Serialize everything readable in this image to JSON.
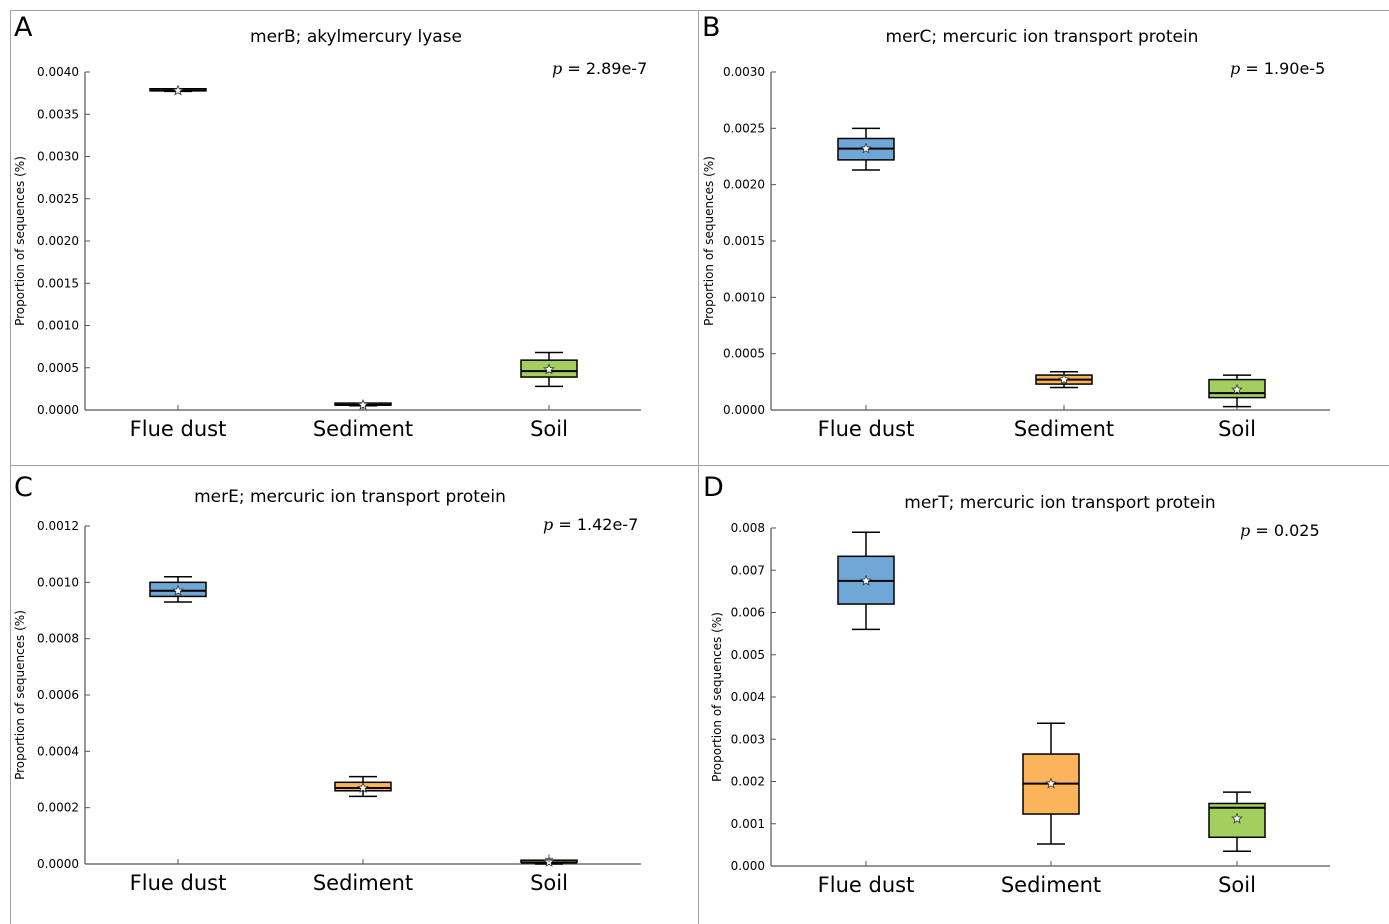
{
  "colors": {
    "flue_dust": "#6fa8d6",
    "sediment": "#fbb45c",
    "soil": "#a3cf5e",
    "axis": "#555555",
    "frame": "#a0a0a0"
  },
  "chart_data": [
    {
      "panel_letter": "A",
      "type": "box",
      "title": "merB; akylmercury lyase",
      "p_label": "p",
      "p_value": "= 2.89e-7",
      "ylabel": "Proportion of sequences (%)",
      "ylim": [
        0,
        0.004
      ],
      "yticks": [
        "0.0000",
        "0.0005",
        "0.0010",
        "0.0015",
        "0.0020",
        "0.0025",
        "0.0030",
        "0.0035",
        "0.0040"
      ],
      "categories": [
        "Flue dust",
        "Sediment",
        "Soil"
      ],
      "boxes": [
        {
          "whisker_low": 0.00377,
          "q1": 0.00377,
          "median": 0.00378,
          "q3": 0.00379,
          "whisker_high": 0.00379,
          "mean": 0.00378
        },
        {
          "whisker_low": 5e-05,
          "q1": 5e-05,
          "median": 6e-05,
          "q3": 7e-05,
          "whisker_high": 7e-05,
          "mean": 6e-05
        },
        {
          "whisker_low": 0.00028,
          "q1": 0.00039,
          "median": 0.00046,
          "q3": 0.00059,
          "whisker_high": 0.00068,
          "mean": 0.00048
        }
      ]
    },
    {
      "panel_letter": "B",
      "type": "box",
      "title": "merC; mercuric ion transport protein",
      "p_label": "p",
      "p_value": "= 1.90e-5",
      "ylabel": "Proportion of sequences (%)",
      "ylim": [
        0,
        0.003
      ],
      "yticks": [
        "0.0000",
        "0.0005",
        "0.0010",
        "0.0015",
        "0.0020",
        "0.0025",
        "0.0030"
      ],
      "categories": [
        "Flue dust",
        "Sediment",
        "Soil"
      ],
      "boxes": [
        {
          "whisker_low": 0.00213,
          "q1": 0.00222,
          "median": 0.00232,
          "q3": 0.00241,
          "whisker_high": 0.0025,
          "mean": 0.00232
        },
        {
          "whisker_low": 0.0002,
          "q1": 0.00023,
          "median": 0.00027,
          "q3": 0.00031,
          "whisker_high": 0.00034,
          "mean": 0.00027
        },
        {
          "whisker_low": 3e-05,
          "q1": 0.00011,
          "median": 0.00015,
          "q3": 0.00027,
          "whisker_high": 0.00031,
          "mean": 0.00018
        }
      ]
    },
    {
      "panel_letter": "C",
      "type": "box",
      "title": "merE; mercuric ion transport protein",
      "p_label": "p",
      "p_value": "= 1.42e-7",
      "ylabel": "Proportion of sequences (%)",
      "ylim": [
        0,
        0.0012
      ],
      "yticks": [
        "0.0000",
        "0.0002",
        "0.0004",
        "0.0006",
        "0.0008",
        "0.0010",
        "0.0012"
      ],
      "categories": [
        "Flue dust",
        "Sediment",
        "Soil"
      ],
      "boxes": [
        {
          "whisker_low": 0.00093,
          "q1": 0.00095,
          "median": 0.00097,
          "q3": 0.001,
          "whisker_high": 0.00102,
          "mean": 0.00097
        },
        {
          "whisker_low": 0.00024,
          "q1": 0.00026,
          "median": 0.00027,
          "q3": 0.00029,
          "whisker_high": 0.00031,
          "mean": 0.00027
        },
        {
          "whisker_low": 0.0,
          "q1": 3e-06,
          "median": 5e-06,
          "q3": 1e-05,
          "whisker_high": 1e-05,
          "mean": 7e-06,
          "outlier": 2e-05
        }
      ]
    },
    {
      "panel_letter": "D",
      "type": "box",
      "title": "merT; mercuric ion transport protein",
      "p_label": "p",
      "p_value": "= 0.025",
      "ylabel": "Proportion of sequences (%)",
      "ylim": [
        0,
        0.008
      ],
      "yticks": [
        "0.000",
        "0.001",
        "0.002",
        "0.003",
        "0.004",
        "0.005",
        "0.006",
        "0.007",
        "0.008"
      ],
      "categories": [
        "Flue dust",
        "Sediment",
        "Soil"
      ],
      "boxes": [
        {
          "whisker_low": 0.0056,
          "q1": 0.0062,
          "median": 0.00675,
          "q3": 0.00733,
          "whisker_high": 0.0079,
          "mean": 0.00675
        },
        {
          "whisker_low": 0.00052,
          "q1": 0.00123,
          "median": 0.00195,
          "q3": 0.00265,
          "whisker_high": 0.00338,
          "mean": 0.00195
        },
        {
          "whisker_low": 0.00035,
          "q1": 0.00068,
          "median": 0.00138,
          "q3": 0.00148,
          "whisker_high": 0.00175,
          "mean": 0.00112
        }
      ]
    }
  ]
}
